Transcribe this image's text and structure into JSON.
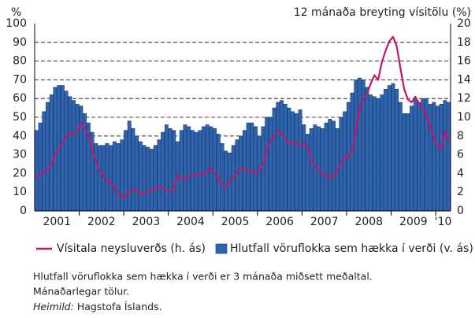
{
  "chart_data": {
    "type": "bar_line",
    "y_label": "%",
    "y2_label": "12 mánaða breyting vísitölu (%)",
    "categories": [
      "2001",
      null,
      null,
      null,
      null,
      null,
      null,
      null,
      null,
      null,
      null,
      null,
      "2002",
      null,
      null,
      null,
      null,
      null,
      null,
      null,
      null,
      null,
      null,
      null,
      "2003",
      null,
      null,
      null,
      null,
      null,
      null,
      null,
      null,
      null,
      null,
      null,
      "2004",
      null,
      null,
      null,
      null,
      null,
      null,
      null,
      null,
      null,
      null,
      null,
      "2005",
      null,
      null,
      null,
      null,
      null,
      null,
      null,
      null,
      null,
      null,
      null,
      "2006",
      null,
      null,
      null,
      null,
      null,
      null,
      null,
      null,
      null,
      null,
      null,
      "2007",
      null,
      null,
      null,
      null,
      null,
      null,
      null,
      null,
      null,
      null,
      null,
      "2008",
      null,
      null,
      null,
      null,
      null,
      null,
      null,
      null,
      null,
      null,
      null,
      "2009",
      null,
      null,
      null,
      null,
      null,
      null,
      null,
      null,
      null,
      null,
      null,
      "'10",
      null,
      null,
      null
    ],
    "series": [
      {
        "name": "Hlutfall vöruflokka sem hækka í verði (v. ás)",
        "type": "bar",
        "color": "#2f65b0",
        "axis": "y",
        "values": [
          43,
          47,
          53,
          58,
          62,
          66,
          67,
          67,
          64,
          61,
          59,
          57,
          56,
          52,
          47,
          42,
          36,
          35,
          35,
          36,
          35,
          37,
          36,
          38,
          43,
          48,
          44,
          40,
          37,
          35,
          34,
          33,
          35,
          38,
          42,
          46,
          44,
          43,
          37,
          43,
          46,
          45,
          43,
          42,
          43,
          45,
          46,
          45,
          44,
          41,
          36,
          32,
          31,
          35,
          38,
          40,
          43,
          47,
          47,
          45,
          40,
          45,
          50,
          50,
          55,
          58,
          59,
          57,
          55,
          53,
          52,
          54,
          46,
          41,
          44,
          46,
          45,
          44,
          47,
          49,
          48,
          44,
          50,
          53,
          58,
          63,
          70,
          71,
          70,
          66,
          62,
          61,
          60,
          62,
          65,
          67,
          68,
          65,
          58,
          52,
          52,
          56,
          60,
          58,
          60,
          60,
          57,
          58,
          56,
          57,
          59,
          58
        ]
      },
      {
        "name": "Vísitala neysluverðs (h. ás)",
        "type": "line",
        "color": "#c0176e",
        "axis": "y2",
        "values": [
          3.5,
          4.0,
          4.1,
          4.3,
          5.0,
          6.0,
          6.7,
          7.2,
          8.0,
          8.3,
          8.2,
          8.6,
          9.4,
          8.9,
          8.0,
          6.5,
          5.3,
          4.3,
          3.8,
          3.3,
          3.0,
          2.5,
          2.0,
          1.5,
          1.6,
          2.0,
          2.3,
          2.2,
          1.8,
          2.0,
          2.0,
          2.2,
          2.4,
          2.6,
          2.5,
          2.3,
          2.0,
          2.5,
          3.8,
          3.6,
          3.4,
          3.6,
          3.8,
          3.9,
          3.8,
          4.0,
          4.2,
          4.6,
          4.0,
          3.5,
          2.8,
          2.5,
          3.0,
          3.6,
          4.0,
          4.6,
          4.4,
          4.2,
          4.3,
          4.1,
          4.4,
          5.0,
          6.5,
          7.5,
          8.0,
          8.5,
          8.3,
          7.6,
          7.2,
          7.3,
          7.3,
          7.0,
          7.2,
          6.8,
          5.3,
          4.8,
          4.3,
          4.0,
          3.8,
          3.5,
          3.8,
          4.2,
          5.2,
          5.8,
          5.8,
          6.5,
          8.5,
          11.0,
          12.0,
          12.5,
          13.6,
          14.5,
          14.0,
          15.9,
          17.1,
          18.1,
          18.6,
          17.6,
          15.2,
          13.0,
          11.9,
          11.6,
          12.2,
          11.5,
          11.0,
          10.2,
          9.0,
          7.8,
          7.0,
          6.6,
          8.5,
          7.6
        ]
      }
    ],
    "ylim": [
      0,
      100
    ],
    "yticks": [
      0,
      10,
      20,
      30,
      40,
      50,
      60,
      70,
      80,
      90,
      100
    ],
    "y2lim": [
      0,
      20
    ],
    "y2ticks": [
      0,
      2,
      4,
      6,
      8,
      10,
      12,
      14,
      16,
      18,
      20
    ],
    "grid": true,
    "notes": [
      "Hlutfall vöruflokka sem hækka í verði er 3 mánaða miðsett meðaltal.",
      "Mánaðarlegar tölur."
    ],
    "source": {
      "label": "Heimild:",
      "text": " Hagstofa Íslands."
    }
  }
}
